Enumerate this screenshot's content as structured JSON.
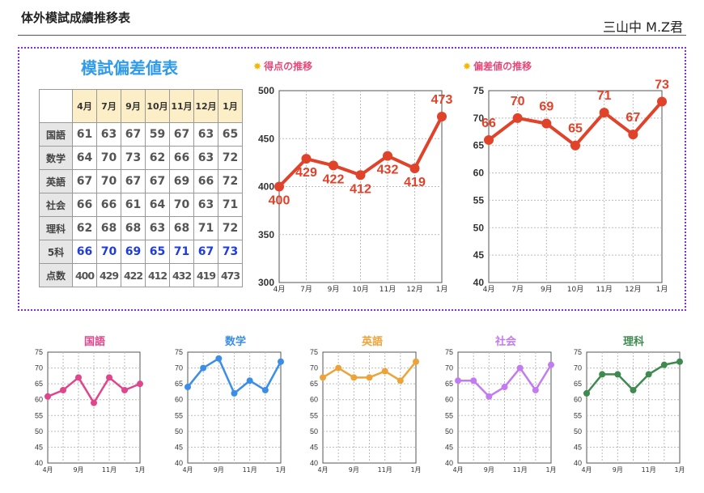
{
  "header": {
    "title": "体外模試成績推移表",
    "student": "三山中 M.Z君"
  },
  "table": {
    "title": "模試偏差値表",
    "months": [
      "4月",
      "7月",
      "9月",
      "10月",
      "11月",
      "12月",
      "1月"
    ],
    "rows": [
      {
        "label": "国語",
        "values": [
          "61",
          "63",
          "67",
          "59",
          "67",
          "63",
          "65"
        ]
      },
      {
        "label": "数学",
        "values": [
          "64",
          "70",
          "73",
          "62",
          "66",
          "63",
          "72"
        ]
      },
      {
        "label": "英語",
        "values": [
          "67",
          "70",
          "67",
          "67",
          "69",
          "66",
          "72"
        ]
      },
      {
        "label": "社会",
        "values": [
          "66",
          "66",
          "61",
          "64",
          "70",
          "63",
          "71"
        ]
      },
      {
        "label": "理科",
        "values": [
          "62",
          "68",
          "68",
          "63",
          "68",
          "71",
          "72"
        ]
      },
      {
        "label": "5科",
        "values": [
          "66",
          "70",
          "69",
          "65",
          "71",
          "67",
          "73"
        ]
      },
      {
        "label": "点数",
        "values": [
          "400",
          "429",
          "422",
          "412",
          "432",
          "419",
          "473"
        ]
      }
    ]
  },
  "chart_data": [
    {
      "type": "line",
      "title": "得点の推移",
      "categories": [
        "4月",
        "7月",
        "9月",
        "10月",
        "11月",
        "12月",
        "1月"
      ],
      "values": [
        400,
        429,
        422,
        412,
        432,
        419,
        473
      ],
      "ylim": [
        300,
        500
      ],
      "yticks": [
        300,
        350,
        400,
        450,
        500
      ],
      "color": "#e0422a",
      "grid": true,
      "data_labels": true
    },
    {
      "type": "line",
      "title": "偏差値の推移",
      "categories": [
        "4月",
        "7月",
        "9月",
        "10月",
        "11月",
        "12月",
        "1月"
      ],
      "values": [
        66,
        70,
        69,
        65,
        71,
        67,
        73
      ],
      "ylim": [
        40,
        75
      ],
      "yticks": [
        40,
        45,
        50,
        55,
        60,
        65,
        70,
        75
      ],
      "color": "#e0422a",
      "grid": true,
      "data_labels": true
    },
    {
      "type": "line",
      "title": "国語",
      "categories": [
        "4月",
        "7月",
        "9月",
        "10月",
        "11月",
        "12月",
        "1月"
      ],
      "values": [
        61,
        63,
        67,
        59,
        67,
        63,
        65
      ],
      "ylim": [
        40,
        75
      ],
      "yticks": [
        40,
        45,
        50,
        55,
        60,
        65,
        70,
        75
      ],
      "xticks_shown": [
        "4月",
        "9月",
        "11月",
        "1月"
      ],
      "color": "#e0458d",
      "title_color": "#e0458d",
      "grid": true
    },
    {
      "type": "line",
      "title": "数学",
      "categories": [
        "4月",
        "7月",
        "9月",
        "10月",
        "11月",
        "12月",
        "1月"
      ],
      "values": [
        64,
        70,
        73,
        62,
        66,
        63,
        72
      ],
      "ylim": [
        40,
        75
      ],
      "yticks": [
        40,
        45,
        50,
        55,
        60,
        65,
        70,
        75
      ],
      "xticks_shown": [
        "4月",
        "9月",
        "11月",
        "1月"
      ],
      "color": "#3b8ee8",
      "title_color": "#3b8ee8",
      "grid": true
    },
    {
      "type": "line",
      "title": "英語",
      "categories": [
        "4月",
        "7月",
        "9月",
        "10月",
        "11月",
        "12月",
        "1月"
      ],
      "values": [
        67,
        70,
        67,
        67,
        69,
        66,
        72
      ],
      "ylim": [
        40,
        75
      ],
      "yticks": [
        40,
        45,
        50,
        55,
        60,
        65,
        70,
        75
      ],
      "xticks_shown": [
        "4月",
        "9月",
        "11月",
        "1月"
      ],
      "color": "#eea33a",
      "title_color": "#eea33a",
      "grid": true
    },
    {
      "type": "line",
      "title": "社会",
      "categories": [
        "4月",
        "7月",
        "9月",
        "10月",
        "11月",
        "12月",
        "1月"
      ],
      "values": [
        66,
        66,
        61,
        64,
        70,
        63,
        71
      ],
      "ylim": [
        40,
        75
      ],
      "yticks": [
        40,
        45,
        50,
        55,
        60,
        65,
        70,
        75
      ],
      "xticks_shown": [
        "4月",
        "9月",
        "11月",
        "1月"
      ],
      "color": "#c27bf0",
      "title_color": "#c27bf0",
      "grid": true
    },
    {
      "type": "line",
      "title": "理科",
      "categories": [
        "4月",
        "7月",
        "9月",
        "10月",
        "11月",
        "12月",
        "1月"
      ],
      "values": [
        62,
        68,
        68,
        63,
        68,
        71,
        72
      ],
      "ylim": [
        40,
        75
      ],
      "yticks": [
        40,
        45,
        50,
        55,
        60,
        65,
        70,
        75
      ],
      "xticks_shown": [
        "4月",
        "9月",
        "11月",
        "1月"
      ],
      "color": "#3f8a4f",
      "title_color": "#3f8a4f",
      "grid": true
    }
  ]
}
